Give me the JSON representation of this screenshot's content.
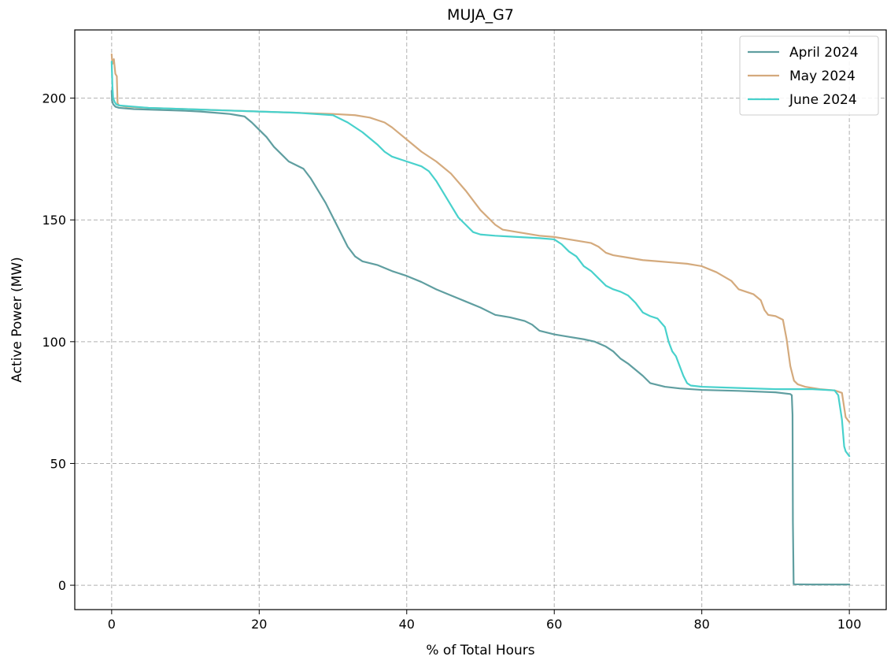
{
  "chart_data": {
    "type": "line",
    "title": "MUJA_G7",
    "xlabel": "% of Total Hours",
    "ylabel": "Active Power (MW)",
    "xlim": [
      -5,
      105
    ],
    "ylim": [
      -10,
      228
    ],
    "xticks": [
      0,
      20,
      40,
      60,
      80,
      100
    ],
    "yticks": [
      0,
      50,
      100,
      150,
      200
    ],
    "grid": true,
    "legend_position": "top-right",
    "series": [
      {
        "name": "April 2024",
        "color": "#5f9ea0",
        "x": [
          0,
          0.05,
          0.2,
          0.5,
          1,
          3,
          5,
          8,
          10,
          12,
          14,
          16,
          17,
          18,
          19,
          20,
          21,
          22,
          23,
          24,
          25,
          26,
          27,
          28,
          29,
          30,
          31,
          32,
          33,
          34,
          36,
          38,
          40,
          42,
          44,
          46,
          48,
          50,
          52,
          54,
          56,
          57,
          58,
          60,
          62,
          64,
          65.5,
          67,
          68,
          69,
          70,
          71,
          72,
          73,
          75,
          77,
          80,
          85,
          90,
          92,
          92.2,
          92.3,
          92.35,
          92.45,
          92.6,
          95,
          100
        ],
        "y": [
          203,
          199,
          197.5,
          196.5,
          196,
          195.5,
          195.3,
          195,
          194.8,
          194.5,
          194,
          193.5,
          193,
          192.5,
          190,
          187,
          184,
          180,
          177,
          174,
          172.5,
          171,
          167,
          162,
          157,
          151,
          145,
          139,
          135,
          133,
          131.5,
          129,
          127,
          124.5,
          121.5,
          119,
          116.5,
          114,
          111,
          110,
          108.5,
          107,
          104.5,
          103,
          102,
          101,
          100,
          98,
          96,
          93,
          91,
          88.5,
          86,
          83,
          81.5,
          80.8,
          80.2,
          79.8,
          79.2,
          78.5,
          78,
          70,
          26,
          0.5,
          0.4,
          0.3,
          0.3
        ]
      },
      {
        "name": "May 2024",
        "color": "#d4aa7d",
        "x": [
          0,
          0.1,
          0.3,
          0.5,
          0.7,
          0.8,
          0.9,
          1,
          2,
          5,
          10,
          15,
          20,
          25,
          30,
          33,
          35,
          37,
          38,
          40,
          42,
          44,
          46,
          48,
          50,
          52,
          53,
          55,
          58,
          60,
          62,
          65,
          66,
          67,
          68,
          70,
          72,
          74,
          76,
          78,
          80,
          82,
          84,
          85,
          86,
          87,
          88,
          88.5,
          89,
          90,
          91,
          91.5,
          92,
          92.5,
          93,
          94,
          96,
          98,
          99,
          99.5,
          100
        ],
        "y": [
          218,
          214,
          216,
          210,
          209,
          198,
          197.5,
          197,
          196.5,
          196,
          195.5,
          195,
          194.5,
          194,
          193.5,
          193,
          192,
          190,
          188,
          183,
          178,
          174,
          169,
          162,
          154,
          148,
          146,
          145,
          143.5,
          143,
          142,
          140.5,
          139,
          136.5,
          135.5,
          134.5,
          133.5,
          133,
          132.5,
          132,
          131,
          128.5,
          125,
          121.5,
          120.5,
          119.5,
          117,
          113,
          111,
          110.5,
          109,
          101,
          90,
          84,
          82.5,
          81.5,
          80.5,
          80,
          79,
          69,
          67
        ]
      },
      {
        "name": "June 2024",
        "color": "#48d1cc",
        "x": [
          0,
          0.1,
          0.2,
          0.4,
          0.6,
          1,
          3,
          5,
          10,
          15,
          20,
          25,
          30,
          32,
          34,
          36,
          37,
          38,
          40,
          42,
          43,
          44,
          45,
          46,
          47,
          48,
          49,
          50,
          52,
          55,
          58,
          60,
          61,
          62,
          63,
          64,
          65,
          66,
          67,
          68,
          69,
          70,
          71,
          72,
          73,
          74,
          75,
          75.5,
          76,
          76.5,
          77,
          77.5,
          78,
          78.5,
          80,
          85,
          90,
          95,
          98,
          98.5,
          99,
          99.3,
          99.5,
          100
        ],
        "y": [
          215,
          205,
          200,
          198.5,
          197.5,
          197,
          196.5,
          196,
          195.5,
          195,
          194.5,
          194,
          193,
          190,
          186,
          181,
          178,
          176,
          174,
          172,
          170,
          166,
          161,
          156,
          151,
          148,
          145,
          144,
          143.5,
          143,
          142.5,
          142,
          140,
          137,
          135,
          131,
          129,
          126,
          123,
          121.5,
          120.5,
          119,
          116,
          112,
          110.5,
          109.5,
          106,
          100,
          96,
          94,
          90,
          86,
          83,
          82,
          81.5,
          81,
          80.5,
          80.5,
          80,
          78,
          68,
          57,
          55,
          53
        ]
      }
    ]
  }
}
